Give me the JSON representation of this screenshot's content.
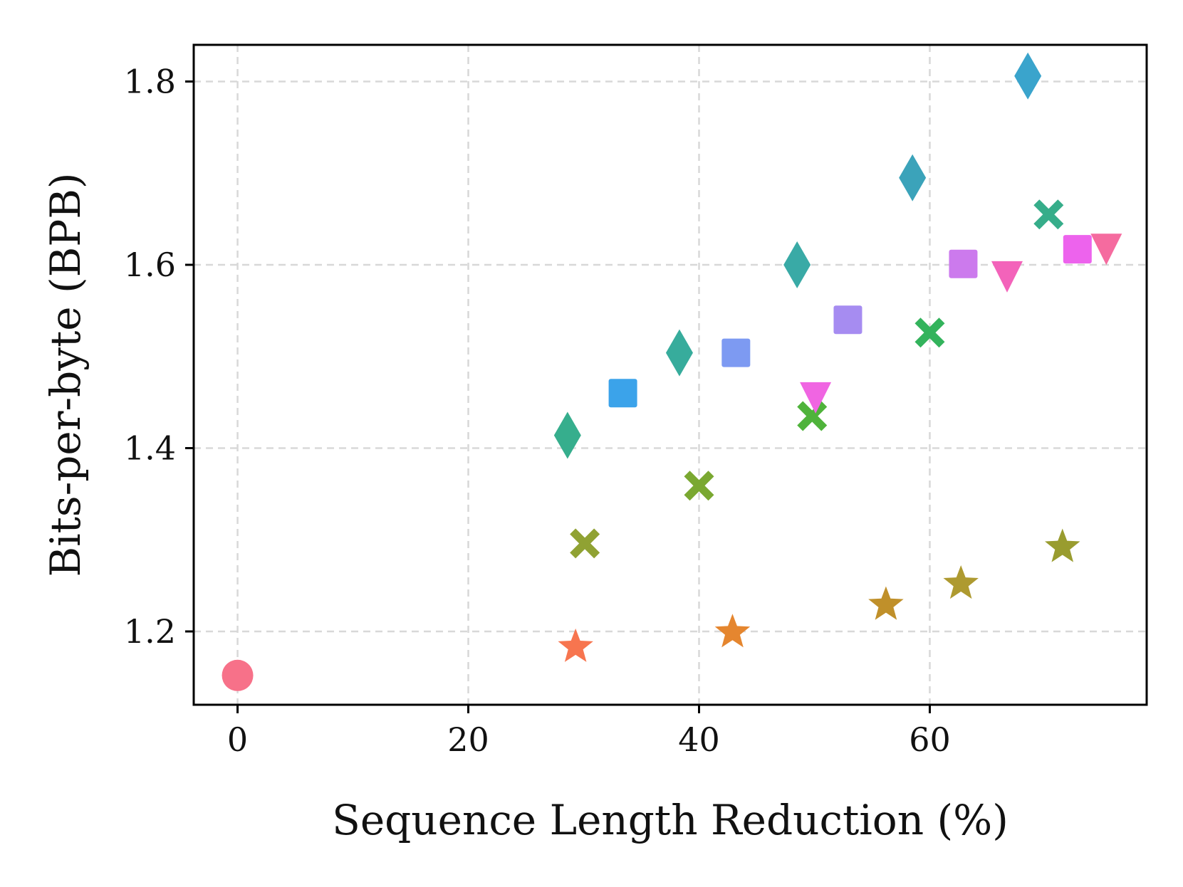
{
  "chart_data": {
    "type": "scatter",
    "title": "",
    "xlabel": "Sequence Length Reduction (%)",
    "ylabel": "Bits-per-byte (BPB)",
    "xlim": [
      -3.8,
      78.8
    ],
    "ylim": [
      1.12,
      1.84
    ],
    "xticks": [
      0,
      20,
      40,
      60
    ],
    "xtick_labels": [
      "0",
      "20",
      "40",
      "60"
    ],
    "yticks": [
      1.2,
      1.4,
      1.6,
      1.8
    ],
    "ytick_labels": [
      "1.2",
      "1.4",
      "1.6",
      "1.8"
    ],
    "grid": true,
    "legend": false,
    "points": [
      {
        "x": 0.0,
        "y": 1.152,
        "marker": "circle",
        "color": "#f77189"
      },
      {
        "x": 29.3,
        "y": 1.183,
        "marker": "star",
        "color": "#f7754f"
      },
      {
        "x": 42.9,
        "y": 1.199,
        "marker": "star",
        "color": "#e5862f"
      },
      {
        "x": 56.2,
        "y": 1.229,
        "marker": "star",
        "color": "#c0902a"
      },
      {
        "x": 62.7,
        "y": 1.252,
        "marker": "star",
        "color": "#ae9a30"
      },
      {
        "x": 71.5,
        "y": 1.292,
        "marker": "star",
        "color": "#999c2f"
      },
      {
        "x": 30.1,
        "y": 1.296,
        "marker": "x",
        "color": "#90a233"
      },
      {
        "x": 40.0,
        "y": 1.359,
        "marker": "x",
        "color": "#7aa831"
      },
      {
        "x": 49.8,
        "y": 1.435,
        "marker": "x",
        "color": "#4fb33b"
      },
      {
        "x": 60.0,
        "y": 1.526,
        "marker": "x",
        "color": "#33b35c"
      },
      {
        "x": 70.3,
        "y": 1.655,
        "marker": "x",
        "color": "#36ad8a"
      },
      {
        "x": 28.6,
        "y": 1.414,
        "marker": "diamond",
        "color": "#36ae8d"
      },
      {
        "x": 38.3,
        "y": 1.504,
        "marker": "diamond",
        "color": "#37ac9c"
      },
      {
        "x": 48.5,
        "y": 1.6,
        "marker": "diamond",
        "color": "#39aaa6"
      },
      {
        "x": 58.5,
        "y": 1.695,
        "marker": "diamond",
        "color": "#3ba3ba"
      },
      {
        "x": 68.5,
        "y": 1.806,
        "marker": "diamond",
        "color": "#3aa4cc"
      },
      {
        "x": 33.4,
        "y": 1.46,
        "marker": "square",
        "color": "#3ba3ea"
      },
      {
        "x": 43.2,
        "y": 1.504,
        "marker": "square",
        "color": "#7d9af2"
      },
      {
        "x": 52.9,
        "y": 1.54,
        "marker": "square",
        "color": "#a68cf1"
      },
      {
        "x": 62.9,
        "y": 1.601,
        "marker": "square",
        "color": "#cc7aed"
      },
      {
        "x": 72.8,
        "y": 1.617,
        "marker": "square",
        "color": "#ed63ed"
      },
      {
        "x": 50.1,
        "y": 1.458,
        "marker": "triangle-down",
        "color": "#f065e2"
      },
      {
        "x": 66.7,
        "y": 1.59,
        "marker": "triangle-down",
        "color": "#f363ba"
      },
      {
        "x": 75.3,
        "y": 1.62,
        "marker": "triangle-down",
        "color": "#f56b9f"
      }
    ]
  }
}
